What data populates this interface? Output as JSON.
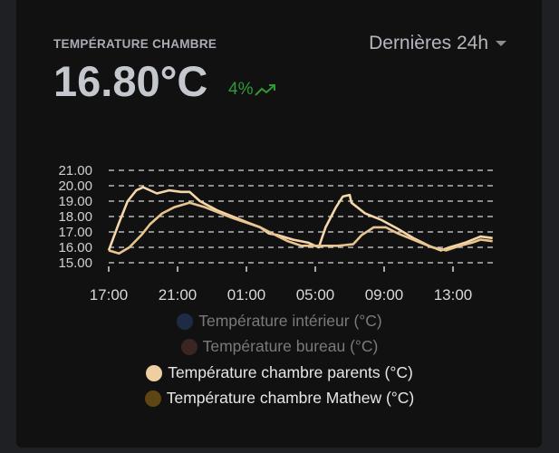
{
  "header": {
    "title": "TEMPÉRATURE CHAMBRE",
    "value": "16.80°C",
    "change": "4%",
    "change_icon": "trending-up-icon",
    "range_label": "Dernières 24h"
  },
  "colors": {
    "change": "#2f9a35"
  },
  "chart_data": {
    "type": "line",
    "yticks": [
      "21.00",
      "20.00",
      "19.00",
      "18.00",
      "17.00",
      "16.00",
      "15.00"
    ],
    "ylim": [
      15,
      21
    ],
    "xticks": [
      "17:00",
      "21:00",
      "01:00",
      "05:00",
      "09:00",
      "13:00"
    ],
    "grid": true,
    "legend_placement": "bottom",
    "legend": [
      {
        "name": "Température intérieur (°C)",
        "color": "#1d2b45",
        "hidden": true
      },
      {
        "name": "Température bureau (°C)",
        "color": "#3b2424",
        "hidden": true
      },
      {
        "name": "Température chambre parents (°C)",
        "color": "#efcfa0",
        "hidden": false
      },
      {
        "name": "Température chambre Mathew (°C)",
        "color": "#5e4614",
        "hidden": false
      }
    ],
    "series": [
      {
        "name": "Température chambre parents (°C)",
        "color": "#f5d7aa",
        "x": [
          "17:00",
          "17:36",
          "18:06",
          "18:36",
          "19:00",
          "19:48",
          "20:30",
          "21:12",
          "21:42",
          "22:18",
          "23:18",
          "00:12",
          "01:06",
          "01:48",
          "02:18",
          "02:48",
          "03:42",
          "04:36",
          "05:12",
          "05:36",
          "06:12",
          "06:36",
          "07:00",
          "07:06",
          "07:54",
          "08:48",
          "09:48",
          "10:42",
          "11:36",
          "12:18",
          "12:48",
          "13:42",
          "14:36",
          "15:18"
        ],
        "y": [
          15.8,
          17.6,
          19.0,
          19.7,
          19.9,
          19.5,
          19.7,
          19.6,
          19.6,
          19.0,
          18.4,
          18.0,
          17.6,
          17.3,
          16.9,
          16.8,
          16.5,
          16.3,
          16.0,
          17.3,
          18.6,
          19.3,
          19.4,
          18.9,
          18.2,
          17.8,
          17.2,
          16.6,
          16.1,
          15.8,
          16.0,
          16.3,
          16.7,
          16.6
        ]
      },
      {
        "name": "Température chambre Mathew (°C)",
        "color": "#e9c48f",
        "x": [
          "17:00",
          "17:36",
          "18:12",
          "18:54",
          "19:24",
          "20:06",
          "20:48",
          "21:42",
          "22:36",
          "00:12",
          "01:48",
          "02:30",
          "03:24",
          "04:12",
          "05:12",
          "06:18",
          "07:12",
          "07:42",
          "08:24",
          "09:06",
          "09:48",
          "10:54",
          "11:48",
          "12:36",
          "13:24",
          "14:06",
          "14:36",
          "15:18"
        ],
        "y": [
          15.8,
          15.6,
          16.0,
          16.8,
          17.5,
          18.2,
          18.6,
          18.9,
          18.6,
          17.9,
          17.3,
          16.9,
          16.4,
          16.1,
          16.1,
          16.1,
          16.2,
          16.8,
          17.3,
          17.3,
          16.9,
          16.4,
          16.0,
          15.8,
          16.1,
          16.3,
          16.5,
          16.4
        ]
      }
    ]
  }
}
